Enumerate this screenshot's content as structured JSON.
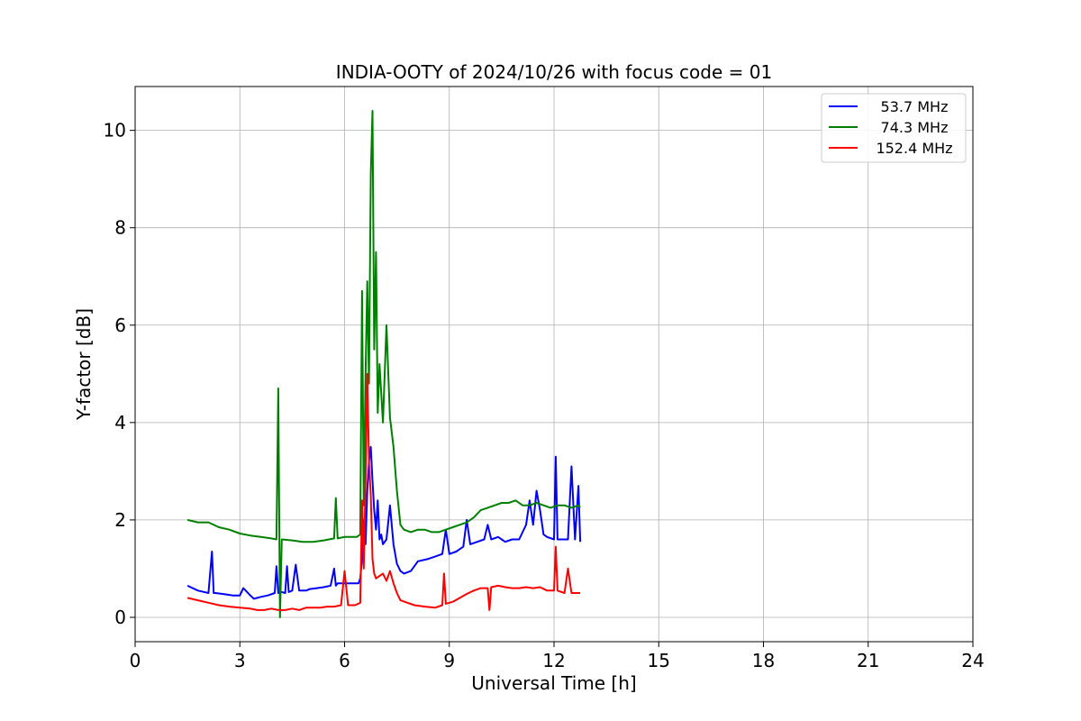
{
  "chart_data": {
    "type": "line",
    "title": "INDIA-OOTY of 2024/10/26 with focus code = 01",
    "xlabel": "Universal Time [h]",
    "ylabel": "Y-factor [dB]",
    "xlim": [
      0,
      24
    ],
    "ylim": [
      -0.5,
      10.9
    ],
    "xticks": [
      "0",
      "3",
      "6",
      "9",
      "12",
      "15",
      "18",
      "21",
      "24"
    ],
    "yticks": [
      "0",
      "2",
      "4",
      "6",
      "8",
      "10"
    ],
    "grid": true,
    "legend_position": "top-right",
    "series": [
      {
        "name": "53.7 MHz",
        "color": "#0000ff",
        "x": [
          1.5,
          1.8,
          2.1,
          2.2,
          2.25,
          2.3,
          2.5,
          2.8,
          3.0,
          3.1,
          3.3,
          3.4,
          3.6,
          3.8,
          4.0,
          4.05,
          4.1,
          4.2,
          4.3,
          4.35,
          4.4,
          4.5,
          4.6,
          4.7,
          4.8,
          4.9,
          5.0,
          5.2,
          5.4,
          5.6,
          5.7,
          5.75,
          5.8,
          6.0,
          6.2,
          6.4,
          6.45,
          6.5,
          6.55,
          6.6,
          6.65,
          6.7,
          6.75,
          6.8,
          6.85,
          6.9,
          6.95,
          7.0,
          7.05,
          7.1,
          7.2,
          7.3,
          7.4,
          7.5,
          7.6,
          7.7,
          7.9,
          8.1,
          8.4,
          8.6,
          8.8,
          8.9,
          9.0,
          9.2,
          9.4,
          9.5,
          9.6,
          9.8,
          10.0,
          10.1,
          10.2,
          10.4,
          10.6,
          10.8,
          11.0,
          11.2,
          11.3,
          11.4,
          11.5,
          11.6,
          11.7,
          11.8,
          12.0,
          12.05,
          12.1,
          12.3,
          12.4,
          12.5,
          12.6,
          12.7,
          12.75
        ],
        "y": [
          0.65,
          0.55,
          0.5,
          1.35,
          0.5,
          0.5,
          0.48,
          0.45,
          0.45,
          0.6,
          0.45,
          0.38,
          0.42,
          0.45,
          0.5,
          1.05,
          0.5,
          0.52,
          0.5,
          1.05,
          0.52,
          0.55,
          1.08,
          0.55,
          0.55,
          0.55,
          0.58,
          0.6,
          0.62,
          0.65,
          1.0,
          0.65,
          0.7,
          0.7,
          0.7,
          0.7,
          0.8,
          1.2,
          2.0,
          1.5,
          2.6,
          3.2,
          3.5,
          2.8,
          2.2,
          1.8,
          2.4,
          1.6,
          1.7,
          1.5,
          1.6,
          2.3,
          1.5,
          1.1,
          0.95,
          0.9,
          0.95,
          1.15,
          1.2,
          1.25,
          1.3,
          1.8,
          1.3,
          1.35,
          1.45,
          2.0,
          1.5,
          1.55,
          1.6,
          1.9,
          1.6,
          1.65,
          1.55,
          1.6,
          1.6,
          1.9,
          2.4,
          1.9,
          2.6,
          2.2,
          1.7,
          1.65,
          1.6,
          3.3,
          1.6,
          1.6,
          1.6,
          3.1,
          1.6,
          2.7,
          1.55
        ]
      },
      {
        "name": "74.3 MHz",
        "color": "#008000",
        "x": [
          1.5,
          1.8,
          2.1,
          2.4,
          2.7,
          3.0,
          3.3,
          3.6,
          3.9,
          4.05,
          4.1,
          4.15,
          4.2,
          4.5,
          4.8,
          5.1,
          5.4,
          5.7,
          5.75,
          5.8,
          6.0,
          6.2,
          6.35,
          6.45,
          6.5,
          6.55,
          6.6,
          6.65,
          6.7,
          6.75,
          6.8,
          6.85,
          6.9,
          6.95,
          7.0,
          7.1,
          7.2,
          7.3,
          7.4,
          7.5,
          7.6,
          7.7,
          7.9,
          8.1,
          8.3,
          8.5,
          8.7,
          8.9,
          9.1,
          9.3,
          9.5,
          9.7,
          9.9,
          10.1,
          10.3,
          10.5,
          10.7,
          10.9,
          11.1,
          11.3,
          11.5,
          11.7,
          11.9,
          12.1,
          12.3,
          12.5,
          12.7,
          12.75
        ],
        "y": [
          2.0,
          1.95,
          1.95,
          1.85,
          1.8,
          1.72,
          1.68,
          1.65,
          1.62,
          1.6,
          4.7,
          0.0,
          1.6,
          1.58,
          1.55,
          1.55,
          1.58,
          1.62,
          2.45,
          1.62,
          1.65,
          1.65,
          1.65,
          1.7,
          6.7,
          2.3,
          5.0,
          6.9,
          4.8,
          9.1,
          10.4,
          5.5,
          7.5,
          4.2,
          5.2,
          4.0,
          6.0,
          4.1,
          3.5,
          2.6,
          1.9,
          1.8,
          1.75,
          1.8,
          1.8,
          1.75,
          1.75,
          1.8,
          1.85,
          1.9,
          1.95,
          2.05,
          2.2,
          2.25,
          2.3,
          2.35,
          2.35,
          2.4,
          2.3,
          2.3,
          2.35,
          2.3,
          2.25,
          2.3,
          2.3,
          2.25,
          2.3,
          2.25
        ]
      },
      {
        "name": "152.4 MHz",
        "color": "#ff0000",
        "x": [
          1.5,
          1.8,
          2.1,
          2.4,
          2.7,
          3.0,
          3.3,
          3.5,
          3.7,
          3.9,
          4.1,
          4.3,
          4.5,
          4.7,
          4.9,
          5.1,
          5.3,
          5.5,
          5.7,
          5.9,
          6.0,
          6.1,
          6.3,
          6.45,
          6.5,
          6.55,
          6.6,
          6.65,
          6.7,
          6.75,
          6.8,
          6.85,
          6.9,
          7.0,
          7.1,
          7.2,
          7.3,
          7.4,
          7.5,
          7.6,
          7.8,
          8.0,
          8.3,
          8.6,
          8.8,
          8.85,
          8.9,
          9.1,
          9.3,
          9.5,
          9.7,
          9.9,
          10.1,
          10.15,
          10.2,
          10.4,
          10.6,
          10.8,
          11.0,
          11.2,
          11.4,
          11.6,
          11.8,
          12.0,
          12.05,
          12.1,
          12.3,
          12.4,
          12.5,
          12.7,
          12.75
        ],
        "y": [
          0.4,
          0.35,
          0.3,
          0.25,
          0.22,
          0.2,
          0.18,
          0.15,
          0.15,
          0.18,
          0.15,
          0.15,
          0.18,
          0.15,
          0.2,
          0.2,
          0.2,
          0.22,
          0.22,
          0.25,
          0.95,
          0.25,
          0.25,
          0.3,
          2.4,
          1.0,
          2.8,
          5.0,
          3.2,
          2.5,
          1.2,
          0.9,
          0.8,
          0.85,
          0.9,
          0.75,
          0.95,
          0.7,
          0.5,
          0.35,
          0.3,
          0.25,
          0.22,
          0.2,
          0.25,
          0.9,
          0.28,
          0.32,
          0.4,
          0.48,
          0.55,
          0.6,
          0.6,
          0.15,
          0.62,
          0.65,
          0.62,
          0.6,
          0.6,
          0.62,
          0.6,
          0.62,
          0.55,
          0.55,
          1.45,
          0.55,
          0.5,
          1.0,
          0.5,
          0.5,
          0.5
        ]
      }
    ]
  }
}
